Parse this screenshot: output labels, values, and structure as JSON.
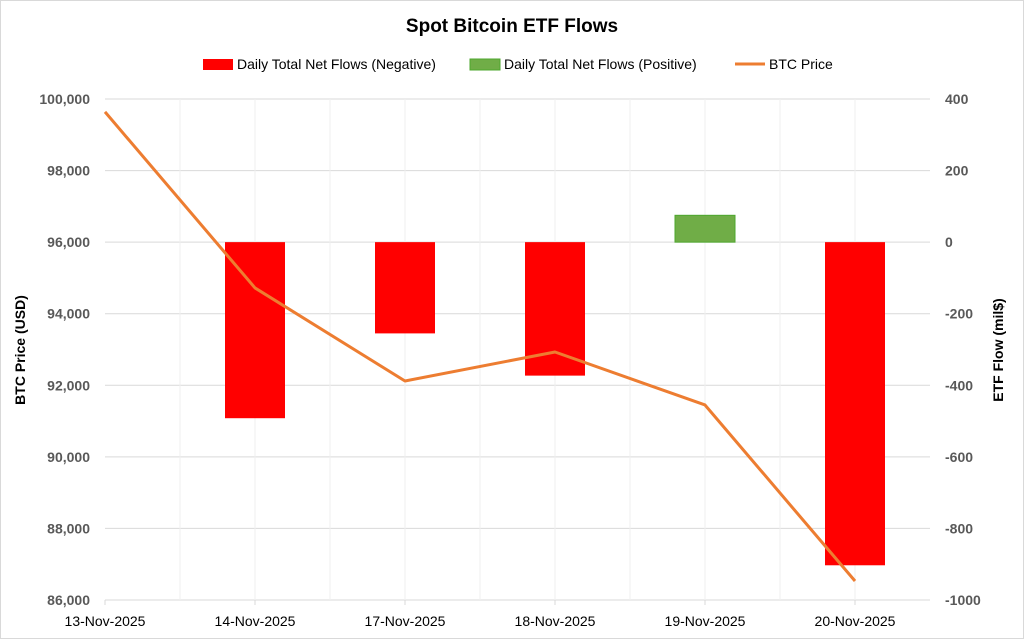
{
  "chart_data": {
    "type": "bar+line",
    "title": "Spot Bitcoin ETF Flows",
    "categories": [
      "13-Nov-2025",
      "14-Nov-2025",
      "17-Nov-2025",
      "18-Nov-2025",
      "19-Nov-2025",
      "20-Nov-2025"
    ],
    "series": [
      {
        "name": "Daily Total Net Flows (Negative)",
        "type": "bar",
        "axis": "right",
        "color": "#ff0000",
        "values": [
          null,
          -492,
          -255,
          -373,
          null,
          -903
        ]
      },
      {
        "name": "Daily Total Net Flows (Positive)",
        "type": "bar",
        "axis": "right",
        "color": "#70ad47",
        "values": [
          null,
          null,
          null,
          null,
          75,
          null
        ]
      },
      {
        "name": "BTC Price",
        "type": "line",
        "axis": "left",
        "color": "#ed7d31",
        "values": [
          99640,
          94720,
          92120,
          92930,
          91450,
          86530
        ]
      }
    ],
    "ylabel": "BTC Price (USD)",
    "ylabel_right": "ETF Flow (mil$)",
    "ylim": [
      86000,
      100000
    ],
    "ylim_right": [
      -1000,
      400
    ],
    "yticks": [
      "86,000",
      "88,000",
      "90,000",
      "92,000",
      "94,000",
      "96,000",
      "98,000",
      "100,000"
    ],
    "yticks_right": [
      "-1000",
      "-800",
      "-600",
      "-400",
      "-200",
      "0",
      "200",
      "400"
    ],
    "legend_position": "top",
    "grid": true
  }
}
